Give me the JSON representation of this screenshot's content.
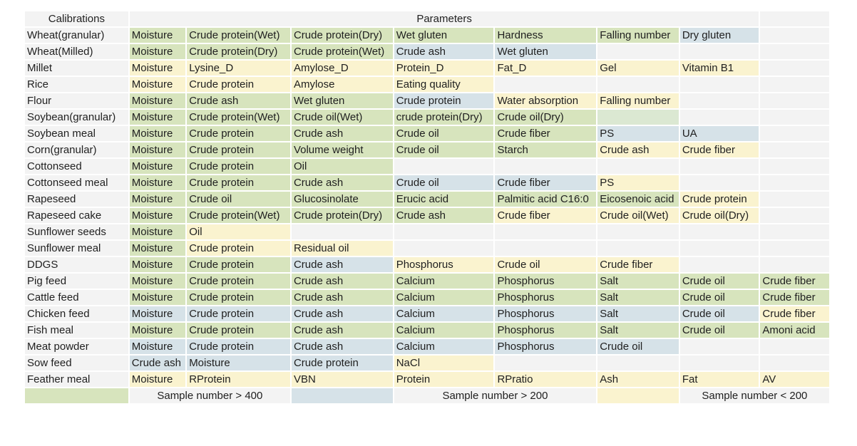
{
  "header": {
    "calibrations": "Calibrations",
    "parameters": "Parameters"
  },
  "colors": {
    "green": "#d7e4bd",
    "blue": "#d6e2e8",
    "yellow": "#faf3cf",
    "empty": "#f3f3f3"
  },
  "rows": [
    {
      "name": "Wheat(granular)",
      "cells": [
        {
          "text": "Moisture",
          "c": "g"
        },
        {
          "text": "Crude protein(Wet)",
          "c": "g"
        },
        {
          "text": "Crude protein(Dry)",
          "c": "g"
        },
        {
          "text": "Wet gluten",
          "c": "g"
        },
        {
          "text": "Hardness",
          "c": "g"
        },
        {
          "text": "Falling number",
          "c": "g"
        },
        {
          "text": "Dry gluten",
          "c": "b"
        },
        {
          "text": "",
          "c": "e"
        }
      ]
    },
    {
      "name": "Wheat(Milled)",
      "cells": [
        {
          "text": "Moisture",
          "c": "g"
        },
        {
          "text": "Crude protein(Dry)",
          "c": "g"
        },
        {
          "text": "Crude protein(Wet)",
          "c": "g"
        },
        {
          "text": "Crude ash",
          "c": "b"
        },
        {
          "text": "Wet gluten",
          "c": "b"
        },
        {
          "text": "",
          "c": "e"
        },
        {
          "text": "",
          "c": "e"
        },
        {
          "text": "",
          "c": "e"
        }
      ]
    },
    {
      "name": "Millet",
      "cells": [
        {
          "text": "Moisture",
          "c": "y"
        },
        {
          "text": "Lysine_D",
          "c": "y"
        },
        {
          "text": "Amylose_D",
          "c": "y"
        },
        {
          "text": "Protein_D",
          "c": "y"
        },
        {
          "text": "Fat_D",
          "c": "y"
        },
        {
          "text": "Gel",
          "c": "y"
        },
        {
          "text": "Vitamin B1",
          "c": "y"
        },
        {
          "text": "",
          "c": "e"
        }
      ]
    },
    {
      "name": "Rice",
      "cells": [
        {
          "text": "Moisture",
          "c": "y"
        },
        {
          "text": "Crude protein",
          "c": "y"
        },
        {
          "text": "Amylose",
          "c": "y"
        },
        {
          "text": "Eating quality",
          "c": "y"
        },
        {
          "text": "",
          "c": "e"
        },
        {
          "text": "",
          "c": "e"
        },
        {
          "text": "",
          "c": "e"
        },
        {
          "text": "",
          "c": "e"
        }
      ]
    },
    {
      "name": "Flour",
      "cells": [
        {
          "text": "Moisture",
          "c": "g"
        },
        {
          "text": "Crude ash",
          "c": "g"
        },
        {
          "text": "Wet gluten",
          "c": "g"
        },
        {
          "text": "Crude protein",
          "c": "b"
        },
        {
          "text": "Water absorption",
          "c": "y"
        },
        {
          "text": "Falling number",
          "c": "y"
        },
        {
          "text": "",
          "c": "e"
        },
        {
          "text": "",
          "c": "e"
        }
      ]
    },
    {
      "name": "Soybean(granular)",
      "cells": [
        {
          "text": "Moisture",
          "c": "g"
        },
        {
          "text": "Crude protein(Wet)",
          "c": "g"
        },
        {
          "text": "Crude oil(Wet)",
          "c": "g"
        },
        {
          "text": "crude protein(Dry)",
          "c": "g"
        },
        {
          "text": "Crude oil(Dry)",
          "c": "g"
        },
        {
          "text": "",
          "c": "lg"
        },
        {
          "text": "",
          "c": "e"
        },
        {
          "text": "",
          "c": "e"
        }
      ]
    },
    {
      "name": "Soybean meal",
      "cells": [
        {
          "text": "Moisture",
          "c": "g"
        },
        {
          "text": "Crude protein",
          "c": "g"
        },
        {
          "text": "Crude ash",
          "c": "g"
        },
        {
          "text": "Crude oil",
          "c": "g"
        },
        {
          "text": "Crude fiber",
          "c": "g"
        },
        {
          "text": "PS",
          "c": "b"
        },
        {
          "text": "UA",
          "c": "b"
        },
        {
          "text": "",
          "c": "e"
        }
      ]
    },
    {
      "name": "Corn(granular)",
      "cells": [
        {
          "text": "Moisture",
          "c": "g"
        },
        {
          "text": "Crude protein",
          "c": "g"
        },
        {
          "text": "Volume weight",
          "c": "g"
        },
        {
          "text": "Crude oil",
          "c": "g"
        },
        {
          "text": "Starch",
          "c": "g"
        },
        {
          "text": "Crude ash",
          "c": "y"
        },
        {
          "text": "Crude fiber",
          "c": "y"
        },
        {
          "text": "",
          "c": "e"
        }
      ]
    },
    {
      "name": "Cottonseed",
      "cells": [
        {
          "text": "Moisture",
          "c": "g"
        },
        {
          "text": "Crude protein",
          "c": "g"
        },
        {
          "text": "Oil",
          "c": "g"
        },
        {
          "text": "",
          "c": "e"
        },
        {
          "text": "",
          "c": "e"
        },
        {
          "text": "",
          "c": "e"
        },
        {
          "text": "",
          "c": "e"
        },
        {
          "text": "",
          "c": "e"
        }
      ]
    },
    {
      "name": "Cottonseed meal",
      "cells": [
        {
          "text": "Moisture",
          "c": "g"
        },
        {
          "text": "Crude protein",
          "c": "g"
        },
        {
          "text": "Crude ash",
          "c": "g"
        },
        {
          "text": "Crude oil",
          "c": "b"
        },
        {
          "text": "Crude fiber",
          "c": "b"
        },
        {
          "text": "PS",
          "c": "y"
        },
        {
          "text": "",
          "c": "e"
        },
        {
          "text": "",
          "c": "e"
        }
      ]
    },
    {
      "name": "Rapeseed",
      "cells": [
        {
          "text": "Moisture",
          "c": "g"
        },
        {
          "text": "Crude oil",
          "c": "g"
        },
        {
          "text": "Glucosinolate",
          "c": "g"
        },
        {
          "text": "Erucic acid",
          "c": "g"
        },
        {
          "text": "Palmitic acid C16:0",
          "c": "g"
        },
        {
          "text": "Eicosenoic acid",
          "c": "g"
        },
        {
          "text": "Crude protein",
          "c": "y"
        },
        {
          "text": "",
          "c": "e"
        }
      ]
    },
    {
      "name": "Rapeseed cake",
      "cells": [
        {
          "text": "Moisture",
          "c": "g"
        },
        {
          "text": "Crude protein(Wet)",
          "c": "g"
        },
        {
          "text": "Crude protein(Dry)",
          "c": "g"
        },
        {
          "text": "Crude ash",
          "c": "g"
        },
        {
          "text": "Crude fiber",
          "c": "y"
        },
        {
          "text": "Crude oil(Wet)",
          "c": "y"
        },
        {
          "text": "Crude oil(Dry)",
          "c": "y"
        },
        {
          "text": "",
          "c": "e"
        }
      ]
    },
    {
      "name": "Sunflower seeds",
      "cells": [
        {
          "text": "Moisture",
          "c": "g"
        },
        {
          "text": "Oil",
          "c": "y"
        },
        {
          "text": "",
          "c": "e"
        },
        {
          "text": "",
          "c": "e"
        },
        {
          "text": "",
          "c": "e"
        },
        {
          "text": "",
          "c": "e"
        },
        {
          "text": "",
          "c": "e"
        },
        {
          "text": "",
          "c": "e"
        }
      ]
    },
    {
      "name": "Sunflower meal",
      "cells": [
        {
          "text": "Moisture",
          "c": "g"
        },
        {
          "text": "Crude protein",
          "c": "y"
        },
        {
          "text": "Residual oil",
          "c": "y"
        },
        {
          "text": "",
          "c": "e"
        },
        {
          "text": "",
          "c": "e"
        },
        {
          "text": "",
          "c": "e"
        },
        {
          "text": "",
          "c": "e"
        },
        {
          "text": "",
          "c": "e"
        }
      ]
    },
    {
      "name": "DDGS",
      "cells": [
        {
          "text": "Moisture",
          "c": "g"
        },
        {
          "text": "Crude protein",
          "c": "g"
        },
        {
          "text": "Crude ash",
          "c": "b"
        },
        {
          "text": "Phosphorus",
          "c": "y"
        },
        {
          "text": "Crude oil",
          "c": "y"
        },
        {
          "text": "Crude fiber",
          "c": "y"
        },
        {
          "text": "",
          "c": "e"
        },
        {
          "text": "",
          "c": "e"
        }
      ]
    },
    {
      "name": "Pig feed",
      "cells": [
        {
          "text": "Moisture",
          "c": "g"
        },
        {
          "text": "Crude protein",
          "c": "g"
        },
        {
          "text": "Crude ash",
          "c": "g"
        },
        {
          "text": "Calcium",
          "c": "g"
        },
        {
          "text": "Phosphorus",
          "c": "g"
        },
        {
          "text": "Salt",
          "c": "g"
        },
        {
          "text": "Crude oil",
          "c": "g"
        },
        {
          "text": "Crude fiber",
          "c": "g"
        }
      ]
    },
    {
      "name": "Cattle feed",
      "cells": [
        {
          "text": "Moisture",
          "c": "g"
        },
        {
          "text": "Crude protein",
          "c": "g"
        },
        {
          "text": "Crude ash",
          "c": "g"
        },
        {
          "text": "Calcium",
          "c": "g"
        },
        {
          "text": "Phosphorus",
          "c": "g"
        },
        {
          "text": "Salt",
          "c": "g"
        },
        {
          "text": "Crude oil",
          "c": "g"
        },
        {
          "text": "Crude fiber",
          "c": "g"
        }
      ]
    },
    {
      "name": "Chicken feed",
      "cells": [
        {
          "text": "Moisture",
          "c": "b"
        },
        {
          "text": "Crude protein",
          "c": "b"
        },
        {
          "text": "Crude ash",
          "c": "b"
        },
        {
          "text": "Calcium",
          "c": "b"
        },
        {
          "text": "Phosphorus",
          "c": "b"
        },
        {
          "text": "Salt",
          "c": "b"
        },
        {
          "text": "Crude oil",
          "c": "b"
        },
        {
          "text": "Crude fiber",
          "c": "y"
        }
      ]
    },
    {
      "name": "Fish meal",
      "cells": [
        {
          "text": "Moisture",
          "c": "g"
        },
        {
          "text": "Crude protein",
          "c": "g"
        },
        {
          "text": "Crude ash",
          "c": "g"
        },
        {
          "text": "Calcium",
          "c": "g"
        },
        {
          "text": "Phosphorus",
          "c": "g"
        },
        {
          "text": "Salt",
          "c": "g"
        },
        {
          "text": "Crude oil",
          "c": "g"
        },
        {
          "text": "Amoni acid",
          "c": "g"
        }
      ]
    },
    {
      "name": "Meat powder",
      "cells": [
        {
          "text": "Moisture",
          "c": "b"
        },
        {
          "text": "Crude protein",
          "c": "b"
        },
        {
          "text": "Crude ash",
          "c": "b"
        },
        {
          "text": "Calcium",
          "c": "b"
        },
        {
          "text": "Phosphorus",
          "c": "b"
        },
        {
          "text": "Crude oil",
          "c": "b"
        },
        {
          "text": "",
          "c": "e"
        },
        {
          "text": "",
          "c": "e"
        }
      ]
    },
    {
      "name": "Sow feed",
      "cells": [
        {
          "text": "Crude ash",
          "c": "b"
        },
        {
          "text": "Moisture",
          "c": "b"
        },
        {
          "text": "Crude protein",
          "c": "b"
        },
        {
          "text": "NaCl",
          "c": "y"
        },
        {
          "text": "",
          "c": "e"
        },
        {
          "text": "",
          "c": "e"
        },
        {
          "text": "",
          "c": "e"
        },
        {
          "text": "",
          "c": "e"
        }
      ]
    },
    {
      "name": "Feather meal",
      "cells": [
        {
          "text": "Moisture",
          "c": "y"
        },
        {
          "text": "RProtein",
          "c": "y"
        },
        {
          "text": "VBN",
          "c": "y"
        },
        {
          "text": "Protein",
          "c": "y"
        },
        {
          "text": "RPratio",
          "c": "y"
        },
        {
          "text": "Ash",
          "c": "y"
        },
        {
          "text": "Fat",
          "c": "y"
        },
        {
          "text": "AV",
          "c": "y"
        }
      ]
    }
  ],
  "legend": [
    {
      "c": "g",
      "label": "Sample number > 400"
    },
    {
      "c": "b",
      "label": "Sample number > 200"
    },
    {
      "c": "y",
      "label": "Sample number < 200"
    }
  ]
}
